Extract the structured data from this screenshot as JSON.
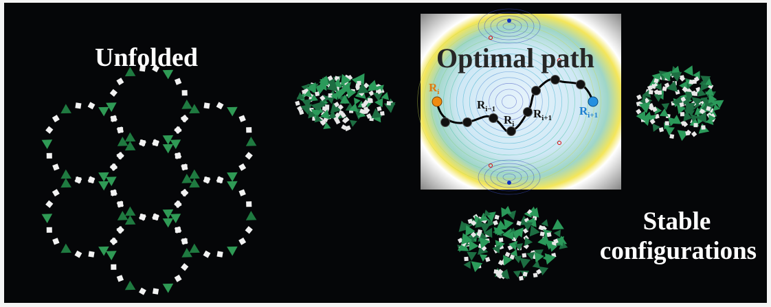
{
  "labels": {
    "unfolded": "Unfolded",
    "optimal_path": "Optimal path",
    "stable_configurations": [
      "Stable",
      "configurations"
    ]
  },
  "path_points": [
    {
      "base": "R",
      "sub": "i"
    },
    {
      "base": "R",
      "sub": "i−1"
    },
    {
      "base": "R",
      "sub": "i"
    },
    {
      "base": "R",
      "sub": "i+1"
    },
    {
      "base": "R",
      "sub": "i+1"
    }
  ]
}
